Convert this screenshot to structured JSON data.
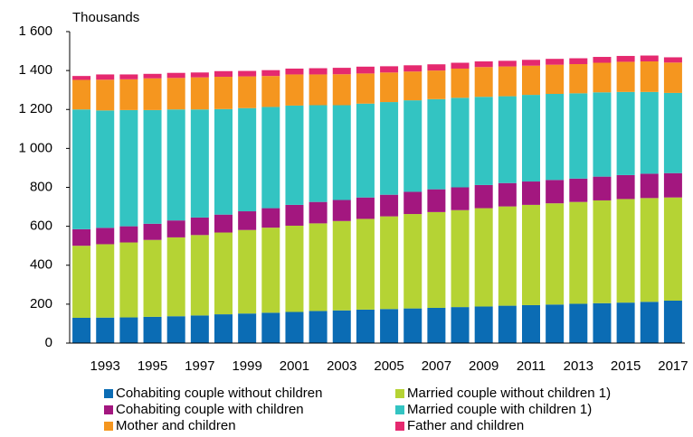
{
  "chart_data": {
    "type": "bar",
    "stacked": true,
    "ylabel": "Thousands",
    "categories": [
      null,
      "1993",
      null,
      "1995",
      null,
      "1997",
      null,
      "1999",
      null,
      "2001",
      null,
      "2003",
      null,
      "2005",
      null,
      "2007",
      null,
      "2009",
      null,
      "2011",
      null,
      "2013",
      null,
      "2015",
      null,
      "2017"
    ],
    "series": [
      {
        "name": "Cohabiting couple without children",
        "color": "#0b6cb4",
        "values": [
          130,
          131,
          132,
          135,
          138,
          142,
          148,
          152,
          156,
          160,
          165,
          168,
          172,
          175,
          178,
          181,
          185,
          188,
          192,
          195,
          198,
          202,
          205,
          208,
          212,
          218
        ]
      },
      {
        "name": "Married couple without children 1)",
        "color": "#b5d334",
        "values": [
          370,
          377,
          385,
          395,
          405,
          413,
          420,
          429,
          437,
          443,
          450,
          459,
          466,
          476,
          485,
          492,
          498,
          505,
          510,
          515,
          520,
          523,
          528,
          532,
          533,
          530
        ]
      },
      {
        "name": "Cohabiting couple with children",
        "color": "#a3177f",
        "values": [
          85,
          84,
          83,
          83,
          87,
          90,
          92,
          96,
          100,
          107,
          110,
          108,
          110,
          111,
          114,
          117,
          117,
          119,
          120,
          120,
          120,
          120,
          122,
          123,
          125,
          125
        ]
      },
      {
        "name": "Married couple with children 1)",
        "color": "#33c4c2",
        "values": [
          615,
          603,
          597,
          584,
          570,
          555,
          542,
          530,
          520,
          510,
          497,
          487,
          482,
          476,
          470,
          463,
          460,
          453,
          446,
          445,
          442,
          438,
          433,
          427,
          420,
          412
        ]
      },
      {
        "name": "Mother and children",
        "color": "#f5961f",
        "values": [
          152,
          158,
          158,
          163,
          162,
          165,
          166,
          163,
          159,
          160,
          158,
          159,
          155,
          152,
          148,
          147,
          150,
          153,
          153,
          150,
          150,
          150,
          152,
          155,
          157,
          156
        ]
      },
      {
        "name": "Father and children",
        "color": "#e5296f",
        "values": [
          20,
          27,
          25,
          23,
          26,
          25,
          29,
          28,
          30,
          30,
          32,
          33,
          35,
          32,
          32,
          32,
          30,
          29,
          29,
          30,
          30,
          30,
          30,
          30,
          30,
          27
        ]
      }
    ],
    "ylim": [
      0,
      1600
    ],
    "yticks": [
      0,
      200,
      400,
      600,
      800,
      {
        "value": 1000,
        "label": "1 000"
      },
      {
        "value": 1200,
        "label": "1 200"
      },
      {
        "value": 1400,
        "label": "1 400"
      },
      {
        "value": 1600,
        "label": "1 600"
      }
    ],
    "grid": false
  }
}
